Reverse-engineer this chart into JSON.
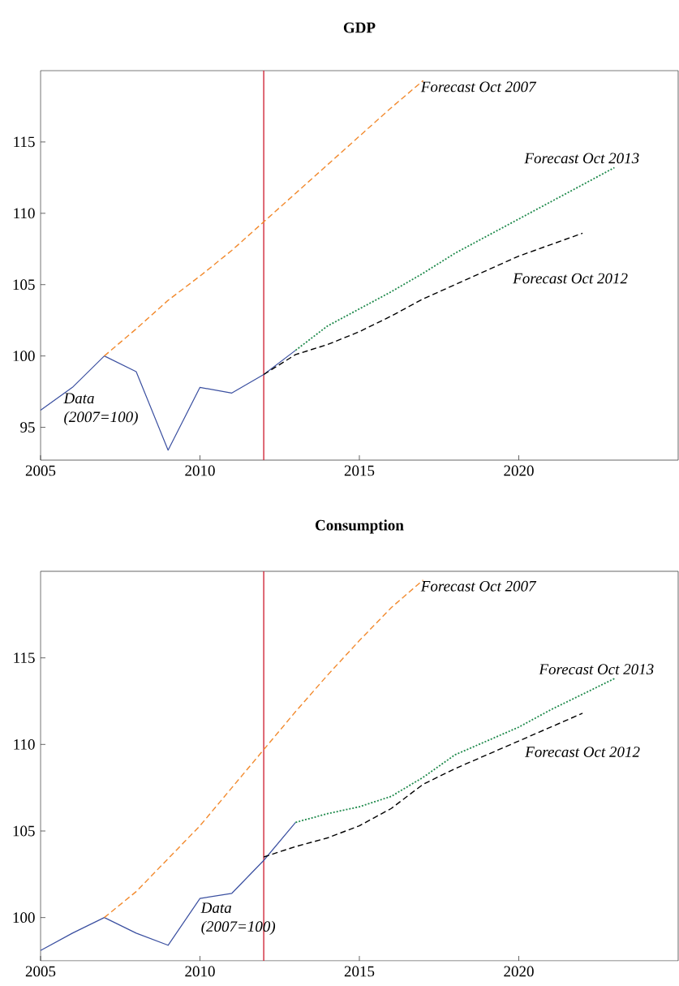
{
  "chart_data": [
    {
      "type": "line",
      "title": "GDP",
      "xlim": [
        2005,
        2025
      ],
      "ylim": [
        92.7,
        120
      ],
      "xticks": [
        2005,
        2010,
        2015,
        2020
      ],
      "yticks": [
        95,
        100,
        105,
        110,
        115
      ],
      "ref_lines": [
        {
          "axis": "x",
          "value": 2012,
          "color": "#d0283a"
        }
      ],
      "series": [
        {
          "name": "Data (2007=100)",
          "color": "#3a4fa0",
          "line_style": "solid",
          "x": [
            2005,
            2006,
            2007,
            2008,
            2009,
            2010,
            2011,
            2012,
            2013
          ],
          "values": [
            96.2,
            97.8,
            100,
            98.9,
            93.4,
            97.8,
            97.4,
            98.7,
            100.4
          ]
        },
        {
          "name": "Forecast Oct 2007",
          "color": "#f28a2e",
          "line_style": "dashed",
          "x": [
            2007,
            2008,
            2009,
            2010,
            2011,
            2012,
            2013,
            2014,
            2015,
            2016,
            2017
          ],
          "values": [
            100,
            101.9,
            103.9,
            105.6,
            107.4,
            109.4,
            111.4,
            113.4,
            115.4,
            117.4,
            119.3
          ]
        },
        {
          "name": "Forecast Oct 2012",
          "color": "#000000",
          "line_style": "dashed",
          "x": [
            2012,
            2013,
            2014,
            2015,
            2016,
            2017,
            2018,
            2019,
            2020,
            2021,
            2022
          ],
          "values": [
            98.7,
            100.1,
            100.8,
            101.7,
            102.8,
            104.0,
            105.0,
            106.0,
            107.0,
            107.8,
            108.6
          ]
        },
        {
          "name": "Forecast Oct 2013",
          "color": "#1f8a4c",
          "line_style": "dotted",
          "x": [
            2013,
            2014,
            2015,
            2016,
            2017,
            2018,
            2019,
            2020,
            2021,
            2022,
            2023
          ],
          "values": [
            100.4,
            102.1,
            103.3,
            104.5,
            105.8,
            107.2,
            108.4,
            109.6,
            110.8,
            112.0,
            113.2
          ]
        }
      ]
    },
    {
      "type": "line",
      "title": "Consumption",
      "xlim": [
        2005,
        2025
      ],
      "ylim": [
        97.5,
        120
      ],
      "xticks": [
        2005,
        2010,
        2015,
        2020
      ],
      "yticks": [
        100,
        105,
        110,
        115
      ],
      "ref_lines": [
        {
          "axis": "x",
          "value": 2012,
          "color": "#d0283a"
        }
      ],
      "series": [
        {
          "name": "Data (2007=100)",
          "color": "#3a4fa0",
          "line_style": "solid",
          "x": [
            2005,
            2006,
            2007,
            2008,
            2009,
            2010,
            2011,
            2012,
            2013
          ],
          "values": [
            98.1,
            99.1,
            100,
            99.1,
            98.4,
            101.1,
            101.4,
            103.3,
            105.5
          ]
        },
        {
          "name": "Forecast Oct 2007",
          "color": "#f28a2e",
          "line_style": "dashed",
          "x": [
            2007,
            2008,
            2009,
            2010,
            2011,
            2012,
            2013,
            2014,
            2015,
            2016,
            2017
          ],
          "values": [
            100,
            101.5,
            103.4,
            105.3,
            107.5,
            109.7,
            111.9,
            114.0,
            116.0,
            117.9,
            119.5
          ]
        },
        {
          "name": "Forecast Oct 2012",
          "color": "#000000",
          "line_style": "dashed",
          "x": [
            2012,
            2013,
            2014,
            2015,
            2016,
            2017,
            2018,
            2019,
            2020,
            2021,
            2022
          ],
          "values": [
            103.5,
            104.1,
            104.6,
            105.3,
            106.3,
            107.7,
            108.6,
            109.4,
            110.2,
            111.0,
            111.8
          ]
        },
        {
          "name": "Forecast Oct 2013",
          "color": "#1f8a4c",
          "line_style": "dotted",
          "x": [
            2013,
            2014,
            2015,
            2016,
            2017,
            2018,
            2019,
            2020,
            2021,
            2022,
            2023
          ],
          "values": [
            105.5,
            106.0,
            106.4,
            107.0,
            108.1,
            109.4,
            110.2,
            111.0,
            112.0,
            112.9,
            113.8
          ]
        }
      ]
    }
  ]
}
